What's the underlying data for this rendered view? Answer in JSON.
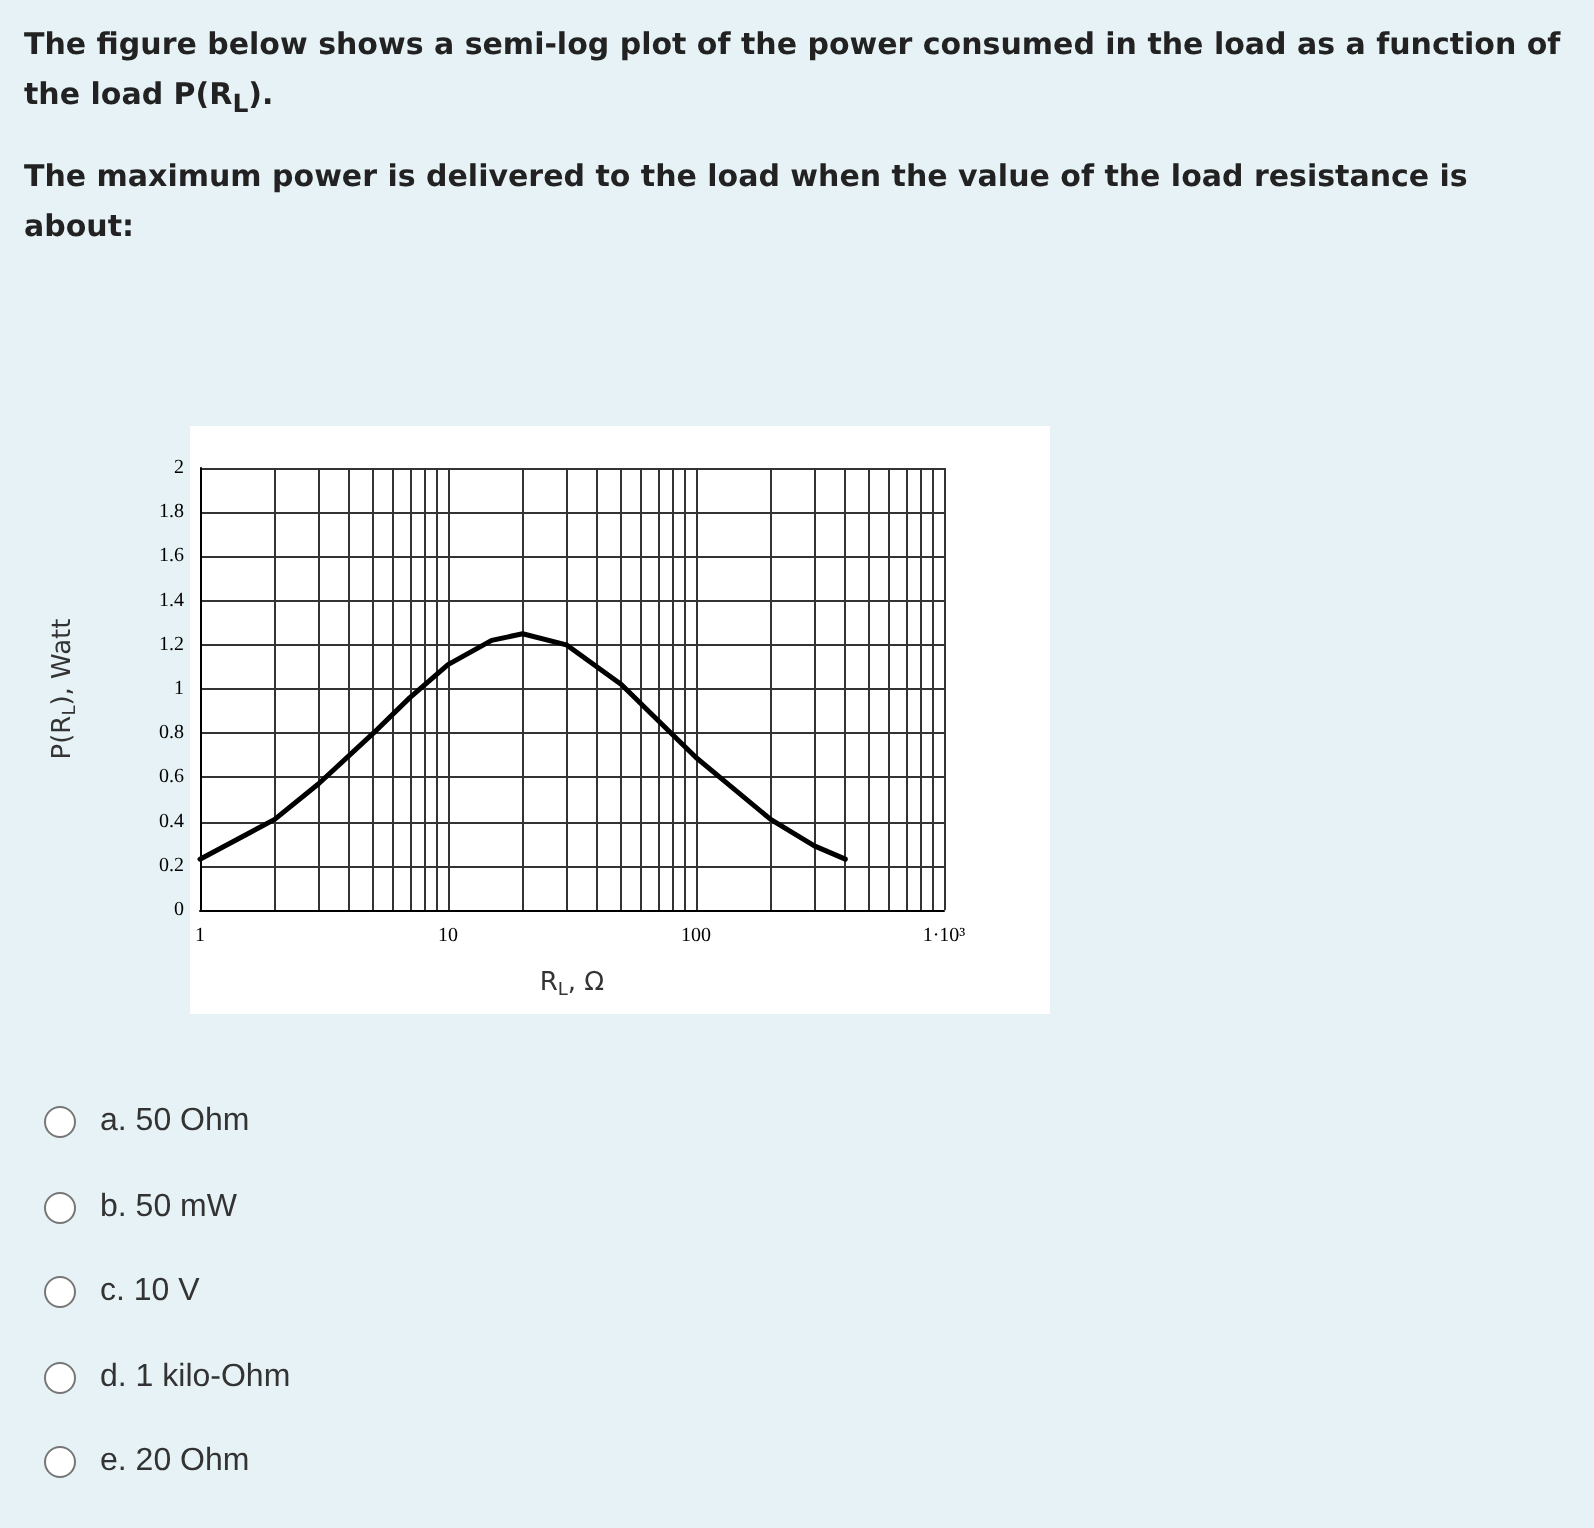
{
  "chart_data": {
    "type": "line",
    "title": "The figure below shows a semi-log plot of the power consumed in the load as a function of the load P(R$_{L}$).",
    "subtitle": "The maximum power is delivered to the load when the value of the load resistance is about:",
    "xlabel": "R$_{L}$, Ω",
    "ylabel": "P(R$_{L}$), Watt",
    "x": [
      1,
      2,
      3,
      5,
      7,
      10,
      15,
      20,
      30,
      50,
      70,
      100,
      200,
      300,
      400
    ],
    "series": [
      {
        "color": "#000000",
        "values": [
          0.23,
          0.41,
          0.57,
          0.8,
          0.96,
          1.11,
          1.22,
          1.25,
          1.2,
          1.02,
          0.86,
          0.69,
          0.41,
          0.29,
          0.23
        ]
      }
    ],
    "log": "x",
    "xlim": [
      1,
      1000
    ],
    "xticks": [
      1,
      {
        "value": 2,
        "label": null
      },
      {
        "value": 3,
        "label": null
      },
      {
        "value": 4,
        "label": null
      },
      {
        "value": 5,
        "label": null
      },
      {
        "value": 6,
        "label": null
      },
      {
        "value": 7,
        "label": null
      },
      {
        "value": 8,
        "label": null
      },
      {
        "value": 9,
        "label": null
      },
      10,
      {
        "value": 20,
        "label": null
      },
      {
        "value": 30,
        "label": null
      },
      {
        "value": 40,
        "label": null
      },
      {
        "value": 50,
        "label": null
      },
      {
        "value": 60,
        "label": null
      },
      {
        "value": 70,
        "label": null
      },
      {
        "value": 80,
        "label": null
      },
      {
        "value": 90,
        "label": null
      },
      100,
      {
        "value": 200,
        "label": null
      },
      {
        "value": 300,
        "label": null
      },
      {
        "value": 400,
        "label": null
      },
      {
        "value": 500,
        "label": null
      },
      {
        "value": 600,
        "label": null
      },
      {
        "value": 700,
        "label": null
      },
      {
        "value": 800,
        "label": null
      },
      {
        "value": 900,
        "label": null
      },
      {
        "value": 1000,
        "label": "1·10³"
      }
    ],
    "ylim": [
      0,
      2
    ],
    "yticks": [
      0,
      0.2,
      0.4,
      0.6,
      0.8,
      1,
      1.2,
      1.4,
      1.6,
      1.8,
      2
    ],
    "grid": true,
    "marker": "none",
    "line_style": "solid",
    "annotations": [
      "a. 50 Ohm",
      "b. 50 mW",
      "c. 10 V",
      "d. 1 kilo-Ohm",
      "e. 20 Ohm"
    ]
  }
}
